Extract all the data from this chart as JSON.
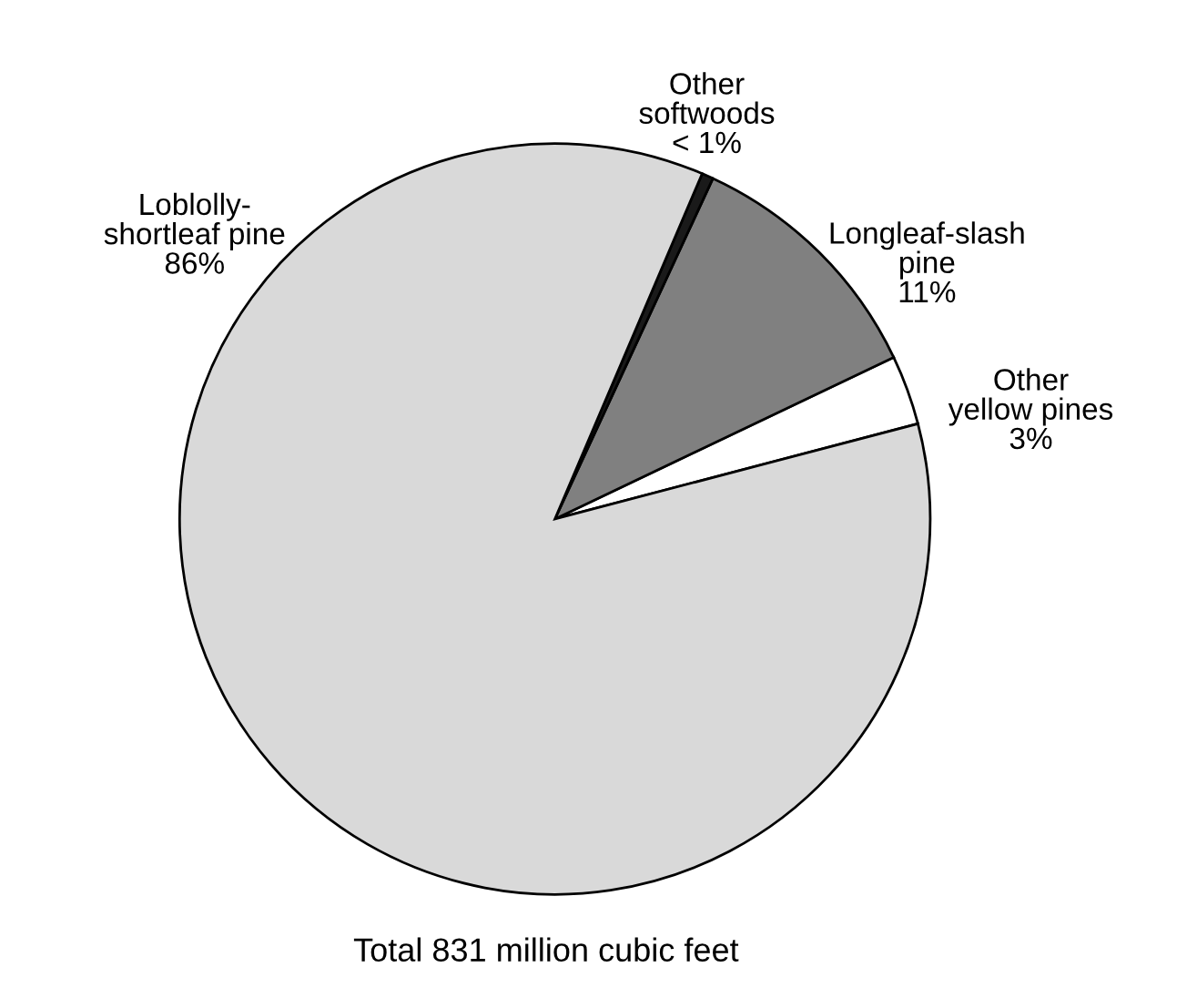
{
  "chart_data": {
    "type": "pie",
    "title": "Total 831 million cubic feet",
    "categories": [
      "Other yellow pines",
      "Longleaf-slash pine",
      "Other softwoods",
      "Loblolly-shortleaf pine"
    ],
    "values": [
      3,
      11,
      0.5,
      85.5
    ],
    "value_labels": [
      "3%",
      "11%",
      "< 1%",
      "86%"
    ],
    "colors": [
      "#ffffff",
      "#808080",
      "#1a1a1a",
      "#d9d9d9"
    ]
  }
}
